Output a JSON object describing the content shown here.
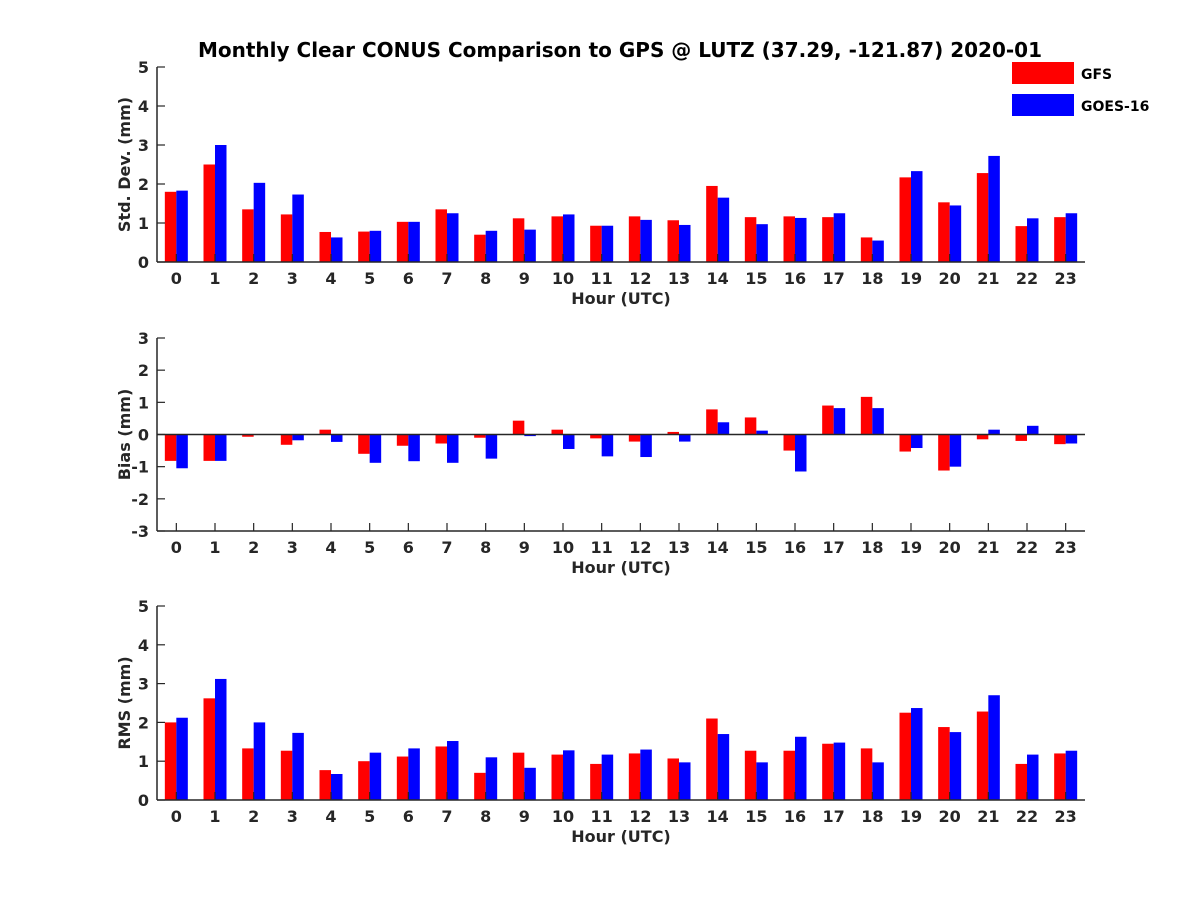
{
  "figure_title": "Monthly Clear CONUS Comparison to GPS @ LUTZ (37.29, -121.87) 2020-01",
  "colors": {
    "GFS": "#ff0000",
    "GOES-16": "#0000ff",
    "axis": "#262626"
  },
  "chart_data": [
    {
      "type": "bar",
      "title": "Monthly Clear CONUS Comparison to GPS @ LUTZ (37.29, -121.87) 2020-01",
      "xlabel": "Hour (UTC)",
      "ylabel": "Std. Dev. (mm)",
      "ylim": [
        0,
        5
      ],
      "yticks": [
        0,
        1,
        2,
        3,
        4,
        5
      ],
      "categories": [
        "0",
        "1",
        "2",
        "3",
        "4",
        "5",
        "6",
        "7",
        "8",
        "9",
        "10",
        "11",
        "12",
        "13",
        "14",
        "15",
        "16",
        "17",
        "18",
        "19",
        "20",
        "21",
        "22",
        "23"
      ],
      "legend": "top-right",
      "series": [
        {
          "name": "GFS",
          "color": "#ff0000",
          "values": [
            1.8,
            2.5,
            1.35,
            1.22,
            0.77,
            0.78,
            1.03,
            1.35,
            0.7,
            1.12,
            1.17,
            0.93,
            1.17,
            1.07,
            1.95,
            1.15,
            1.17,
            1.15,
            0.63,
            2.17,
            1.53,
            2.28,
            0.92,
            1.15
          ]
        },
        {
          "name": "GOES-16",
          "color": "#0000ff",
          "values": [
            1.83,
            3.0,
            2.03,
            1.73,
            0.63,
            0.8,
            1.03,
            1.25,
            0.8,
            0.83,
            1.22,
            0.93,
            1.08,
            0.95,
            1.65,
            0.97,
            1.13,
            1.25,
            0.55,
            2.33,
            1.45,
            2.72,
            1.12,
            1.25
          ]
        }
      ]
    },
    {
      "type": "bar",
      "xlabel": "Hour (UTC)",
      "ylabel": "Bias (mm)",
      "ylim": [
        -3,
        3
      ],
      "yticks": [
        -3,
        -2,
        -1,
        0,
        1,
        2,
        3
      ],
      "categories": [
        "0",
        "1",
        "2",
        "3",
        "4",
        "5",
        "6",
        "7",
        "8",
        "9",
        "10",
        "11",
        "12",
        "13",
        "14",
        "15",
        "16",
        "17",
        "18",
        "19",
        "20",
        "21",
        "22",
        "23"
      ],
      "series": [
        {
          "name": "GFS",
          "color": "#ff0000",
          "values": [
            -0.82,
            -0.82,
            -0.07,
            -0.32,
            0.15,
            -0.6,
            -0.35,
            -0.28,
            -0.1,
            0.43,
            0.15,
            -0.12,
            -0.22,
            0.08,
            0.78,
            0.53,
            -0.5,
            0.9,
            1.17,
            -0.53,
            -1.12,
            -0.15,
            -0.2,
            -0.3
          ]
        },
        {
          "name": "GOES-16",
          "color": "#0000ff",
          "values": [
            -1.05,
            -0.82,
            0.0,
            -0.18,
            -0.23,
            -0.88,
            -0.83,
            -0.88,
            -0.75,
            -0.05,
            -0.45,
            -0.68,
            -0.7,
            -0.22,
            0.38,
            0.12,
            -1.15,
            0.82,
            0.82,
            -0.42,
            -1.0,
            0.15,
            0.27,
            -0.28
          ]
        }
      ]
    },
    {
      "type": "bar",
      "xlabel": "Hour (UTC)",
      "ylabel": "RMS (mm)",
      "ylim": [
        0,
        5
      ],
      "yticks": [
        0,
        1,
        2,
        3,
        4,
        5
      ],
      "categories": [
        "0",
        "1",
        "2",
        "3",
        "4",
        "5",
        "6",
        "7",
        "8",
        "9",
        "10",
        "11",
        "12",
        "13",
        "14",
        "15",
        "16",
        "17",
        "18",
        "19",
        "20",
        "21",
        "22",
        "23"
      ],
      "series": [
        {
          "name": "GFS",
          "color": "#ff0000",
          "values": [
            2.0,
            2.62,
            1.33,
            1.27,
            0.77,
            1.0,
            1.12,
            1.38,
            0.7,
            1.22,
            1.17,
            0.93,
            1.2,
            1.07,
            2.1,
            1.27,
            1.27,
            1.45,
            1.33,
            2.25,
            1.88,
            2.28,
            0.93,
            1.2
          ]
        },
        {
          "name": "GOES-16",
          "color": "#0000ff",
          "values": [
            2.12,
            3.12,
            2.0,
            1.73,
            0.67,
            1.22,
            1.33,
            1.52,
            1.1,
            0.83,
            1.28,
            1.17,
            1.3,
            0.97,
            1.7,
            0.97,
            1.63,
            1.48,
            0.97,
            2.37,
            1.75,
            2.7,
            1.17,
            1.27
          ]
        }
      ]
    }
  ]
}
